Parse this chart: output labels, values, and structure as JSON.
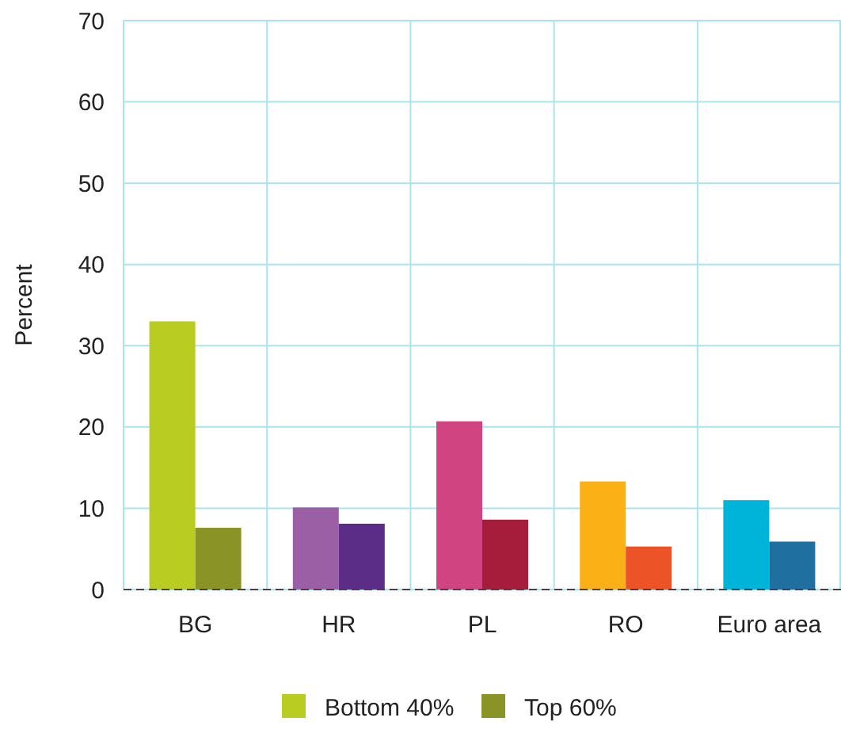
{
  "chart_data": {
    "type": "bar",
    "ylabel": "Percent",
    "categories": [
      "BG",
      "HR",
      "PL",
      "RO",
      "Euro area"
    ],
    "series": [
      {
        "name": "Bottom 40%",
        "color": "#b8cc22",
        "colors": [
          "#b8cc22",
          "#9b5fa6",
          "#d04482",
          "#fbb016",
          "#00b4d9"
        ],
        "values": [
          33,
          10.1,
          20.7,
          13.3,
          11
        ]
      },
      {
        "name": "Top 60%",
        "color": "#8a9426",
        "colors": [
          "#8a9426",
          "#5b2d86",
          "#a51d3b",
          "#ec5428",
          "#1f6fa0"
        ],
        "values": [
          7.6,
          8.1,
          8.6,
          5.3,
          5.9
        ]
      }
    ],
    "ylim": [
      0,
      70
    ],
    "yticks": [
      0,
      10,
      20,
      30,
      40,
      50,
      60,
      70
    ],
    "grid": true,
    "legend": "bottom"
  }
}
